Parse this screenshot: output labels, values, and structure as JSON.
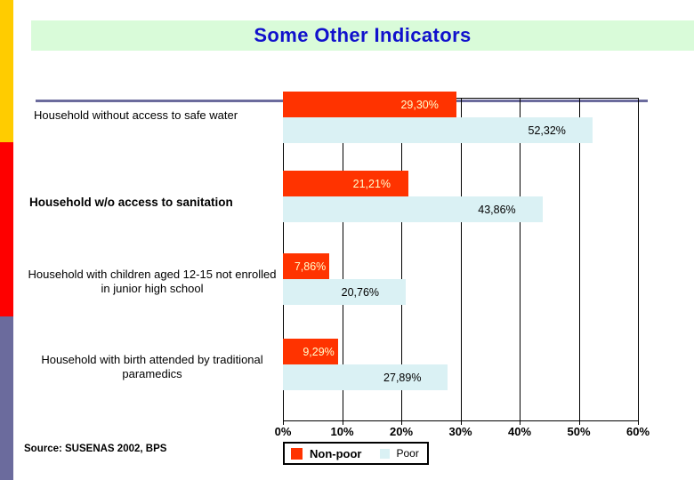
{
  "title": "Some Other Indicators",
  "source": "Source: SUSENAS 2002, BPS",
  "chart_data": {
    "type": "bar",
    "orientation": "horizontal",
    "categories": [
      "Household without access to safe water",
      "Household w/o access to sanitation",
      "Household with children aged 12-15 not enrolled in junior high school",
      "Household with birth attended by traditional paramedics"
    ],
    "series": [
      {
        "name": "Non-poor",
        "color": "#ff3300",
        "values": [
          29.3,
          21.21,
          7.86,
          9.29
        ],
        "data_labels": [
          "29,30%",
          "21,21%",
          "7,86%",
          "9,29%"
        ]
      },
      {
        "name": "Poor",
        "color": "#daf1f4",
        "values": [
          52.32,
          43.86,
          20.76,
          27.89
        ],
        "data_labels": [
          "52,32%",
          "43,86%",
          "20,76%",
          "27,89%"
        ]
      }
    ],
    "x_ticks": [
      "0%",
      "10%",
      "20%",
      "30%",
      "40%",
      "50%",
      "60%"
    ],
    "xlim": [
      0,
      60
    ],
    "grid": true,
    "legend_position": "bottom"
  },
  "colors": {
    "nonpoor_bar": "#ff3300",
    "poor_bar": "#daf1f4",
    "nonpoor_label_text": "#ffffcc",
    "title_text": "#1111cc",
    "title_bg": "#d9fbd9",
    "divider_line": "#6b6b9d",
    "stripe_yellow": "#ffcc00",
    "stripe_red": "#fe0000",
    "stripe_slate": "#6b6b9d"
  }
}
